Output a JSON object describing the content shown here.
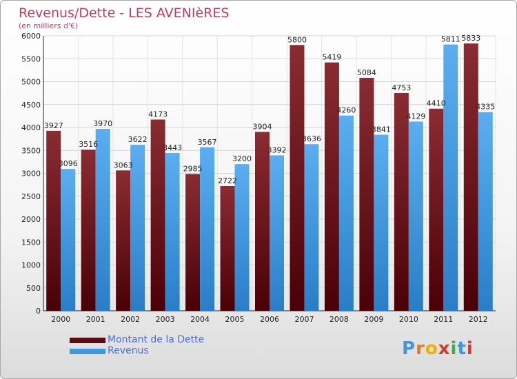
{
  "header": {
    "title": "Revenus/Dette - LES AVENIèRES",
    "subtitle": "(en milliers d'€)"
  },
  "chart_data": {
    "type": "bar",
    "categories": [
      "2000",
      "2001",
      "2002",
      "2003",
      "2004",
      "2005",
      "2006",
      "2007",
      "2008",
      "2009",
      "2010",
      "2011",
      "2012"
    ],
    "series": [
      {
        "name": "Montant de la Dette",
        "color": "#7a1c22",
        "values": [
          3927,
          3516,
          3063,
          4173,
          2985,
          2722,
          3904,
          5800,
          5419,
          5084,
          4753,
          4410,
          5833
        ]
      },
      {
        "name": "Revenus",
        "color": "#3f97dd",
        "values": [
          3096,
          3970,
          3622,
          3443,
          3567,
          3200,
          3392,
          3636,
          4260,
          3841,
          4129,
          5811,
          4335
        ]
      }
    ],
    "ylim": [
      0,
      6000
    ],
    "yticks": [
      0,
      500,
      1000,
      1500,
      2000,
      2500,
      3000,
      3500,
      4000,
      4500,
      5000,
      5500,
      6000
    ],
    "grid": true,
    "legend_position": "bottom-left"
  },
  "legend": {
    "items": [
      {
        "label": "Montant de la Dette",
        "color": "#5a0a10"
      },
      {
        "label": "Revenus",
        "color": "#3f97dd"
      }
    ]
  },
  "logo": {
    "letters": [
      "P",
      "r",
      "o",
      "x",
      "i",
      "t",
      "i"
    ],
    "colors": [
      "#3f97dd",
      "#e07b1f",
      "#f0b000",
      "#d43a2a",
      "#4aa84a",
      "#3f97dd",
      "#d43a2a"
    ]
  }
}
